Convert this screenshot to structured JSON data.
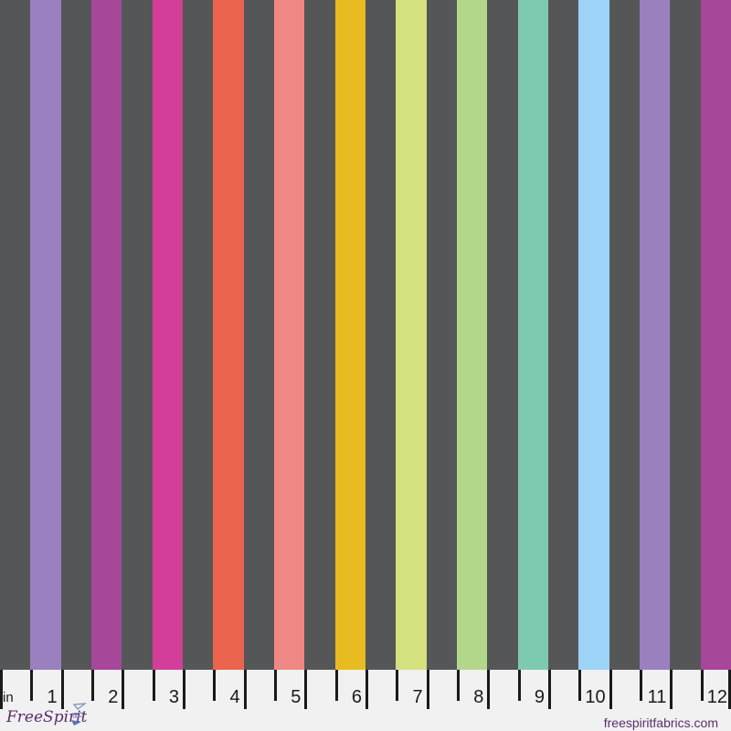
{
  "fabric": {
    "background_color": "#555658",
    "stripes": [
      {
        "color": "#9b80bf"
      },
      {
        "color": "#a6479a"
      },
      {
        "color": "#d23e98"
      },
      {
        "color": "#ea644d"
      },
      {
        "color": "#ef8784"
      },
      {
        "color": "#e8bc20"
      },
      {
        "color": "#d5e07f"
      },
      {
        "color": "#b3d78a"
      },
      {
        "color": "#7ecab0"
      },
      {
        "color": "#9dd3f6"
      },
      {
        "color": "#9b80bf"
      },
      {
        "color": "#a6479a"
      }
    ]
  },
  "ruler": {
    "unit": "in",
    "numbers": [
      "1",
      "2",
      "3",
      "4",
      "5",
      "6",
      "7",
      "8",
      "9",
      "10",
      "11",
      "12"
    ],
    "logo_text": "FreeSpirit",
    "website": "freespiritfabrics.com"
  }
}
